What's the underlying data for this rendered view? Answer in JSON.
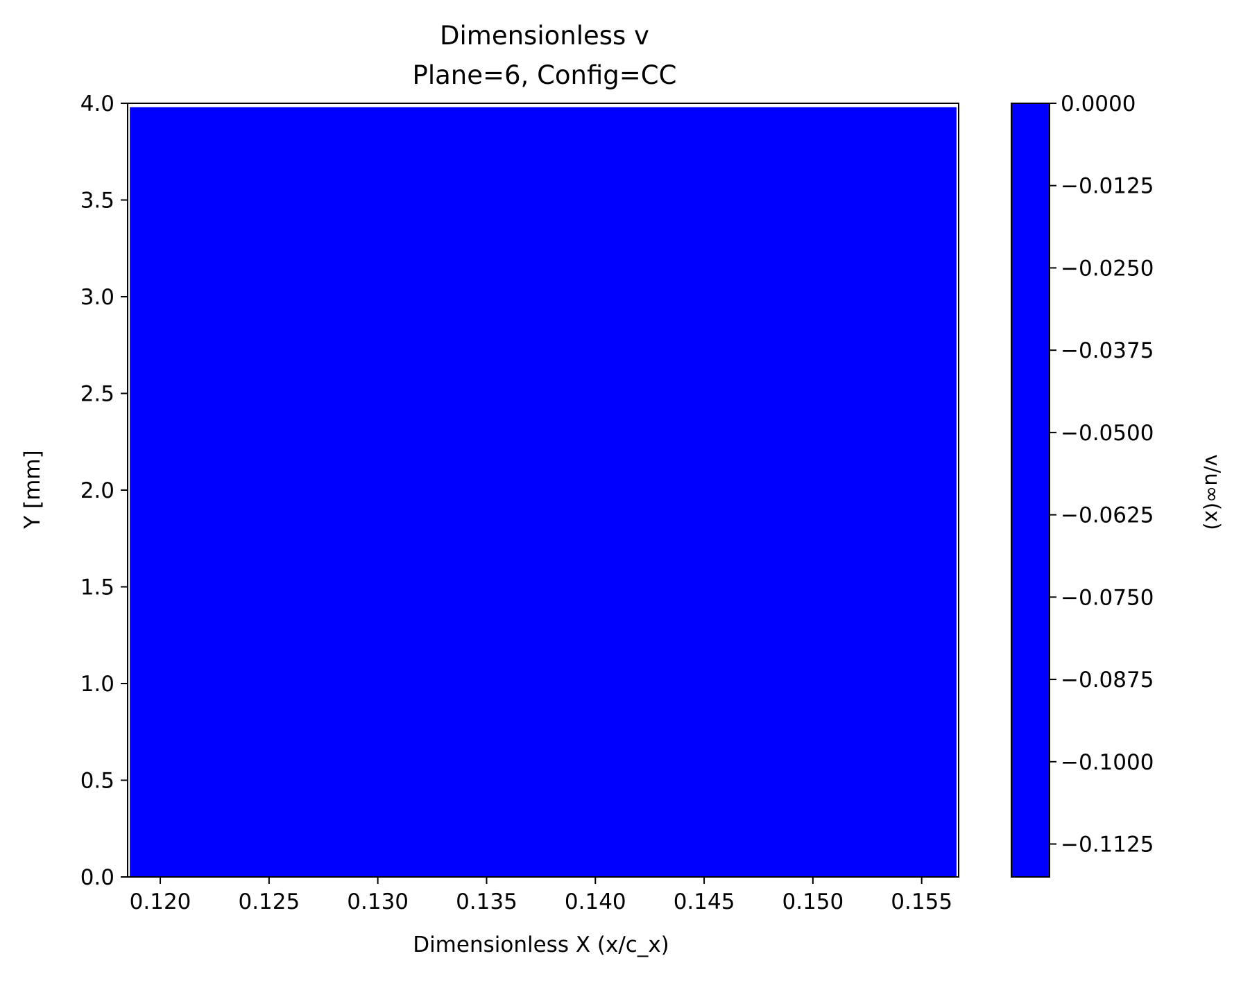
{
  "chart_data": {
    "type": "heatmap",
    "title": "Dimensionless v",
    "subtitle": "Plane=6, Config=CC",
    "xlabel": "Dimensionless X (x/c_x)",
    "ylabel": "Y [mm]",
    "xlim": [
      0.1185,
      0.1567
    ],
    "ylim": [
      0.0,
      4.0
    ],
    "x_ticks": [
      0.12,
      0.125,
      0.13,
      0.135,
      0.14,
      0.145,
      0.15,
      0.155
    ],
    "x_tick_labels": [
      "0.120",
      "0.125",
      "0.130",
      "0.135",
      "0.140",
      "0.145",
      "0.150",
      "0.155"
    ],
    "y_ticks": [
      0.0,
      0.5,
      1.0,
      1.5,
      2.0,
      2.5,
      3.0,
      3.5,
      4.0
    ],
    "y_tick_labels": [
      "0.0",
      "0.5",
      "1.0",
      "1.5",
      "2.0",
      "2.5",
      "3.0",
      "3.5",
      "4.0"
    ],
    "field_extent": {
      "x": [
        0.1186,
        0.1566
      ],
      "y": [
        0.0,
        3.98
      ]
    },
    "field_value": "uniform (lowest colorbar level)",
    "grid": false,
    "legend": "none",
    "colorbar": {
      "label": "v/u∞(x)",
      "range": [
        -0.1175,
        0.0
      ],
      "ticks": [
        0.0,
        -0.0125,
        -0.025,
        -0.0375,
        -0.05,
        -0.0625,
        -0.075,
        -0.0875,
        -0.1,
        -0.1125
      ],
      "tick_labels": [
        "0.0000",
        "−0.0125",
        "−0.0250",
        "−0.0375",
        "−0.0500",
        "−0.0625",
        "−0.0750",
        "−0.0875",
        "−0.1000",
        "−0.1125"
      ],
      "color": "#0000ff"
    },
    "colors": {
      "field": "#0000ff",
      "axes": "#000000",
      "background": "#ffffff"
    }
  }
}
